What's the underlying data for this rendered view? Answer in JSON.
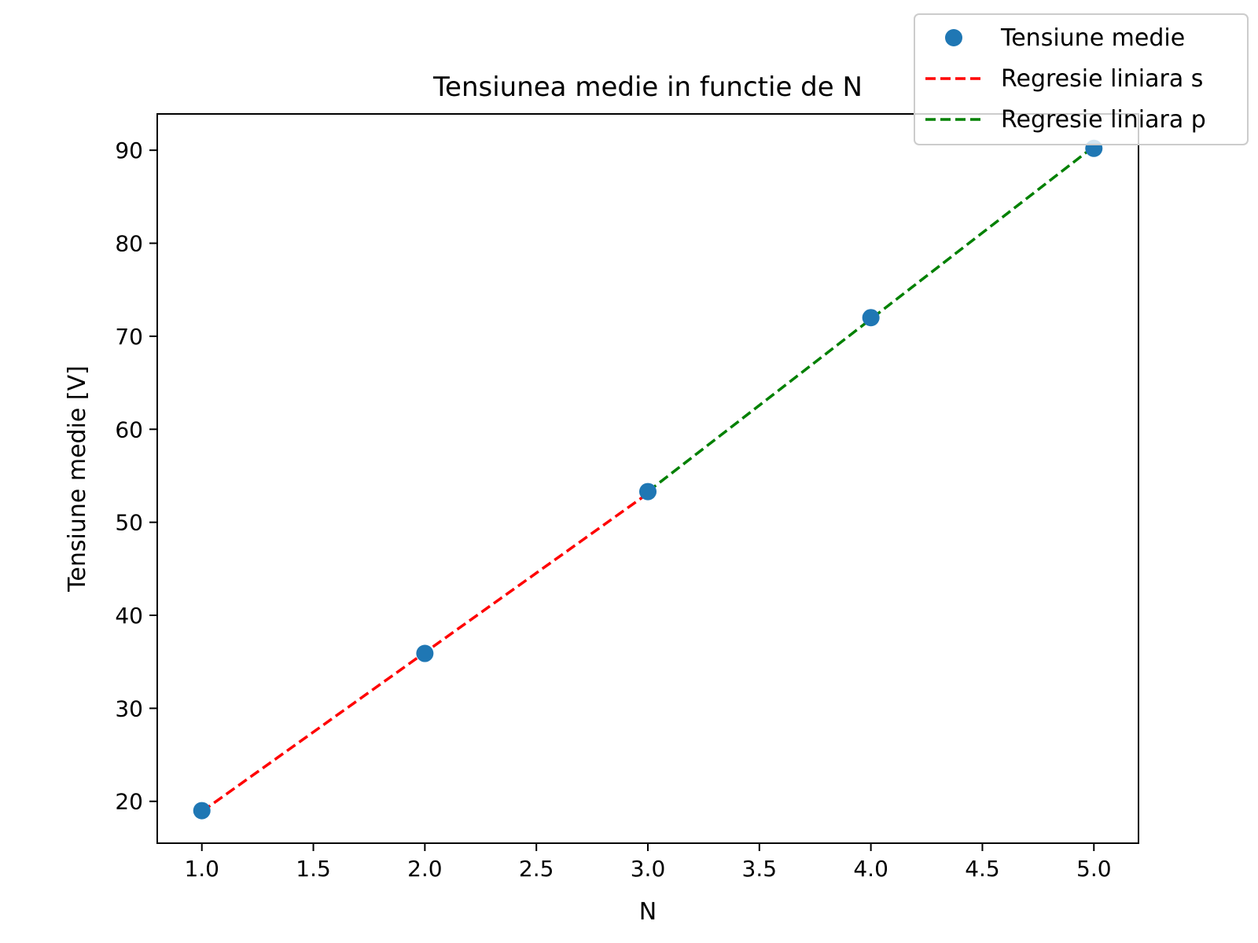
{
  "chart_data": {
    "type": "line",
    "title": "Tensiunea medie in functie de N",
    "xlabel": "N",
    "ylabel": "Tensiune medie [V]",
    "xlim": [
      0.8,
      5.2
    ],
    "ylim": [
      15.5,
      93.9
    ],
    "xticks": [
      "1.0",
      "1.5",
      "2.0",
      "2.5",
      "3.0",
      "3.5",
      "4.0",
      "4.5",
      "5.0"
    ],
    "yticks": [
      "20",
      "30",
      "40",
      "50",
      "60",
      "70",
      "80",
      "90"
    ],
    "grid": false,
    "legend_position": "top-right",
    "series": [
      {
        "name": "Tensiune medie",
        "style": "markers",
        "color": "#1f77b4",
        "x": [
          1,
          2,
          3,
          4,
          5
        ],
        "y": [
          19.0,
          35.9,
          53.3,
          72.0,
          90.2
        ]
      },
      {
        "name": "Regresie liniara s",
        "style": "dashed",
        "color": "#ff0000",
        "x": [
          1,
          3
        ],
        "y": [
          18.9,
          53.1
        ]
      },
      {
        "name": "Regresie liniara p",
        "style": "dashed",
        "color": "#008000",
        "x": [
          3,
          5
        ],
        "y": [
          53.3,
          90.4
        ]
      }
    ]
  }
}
